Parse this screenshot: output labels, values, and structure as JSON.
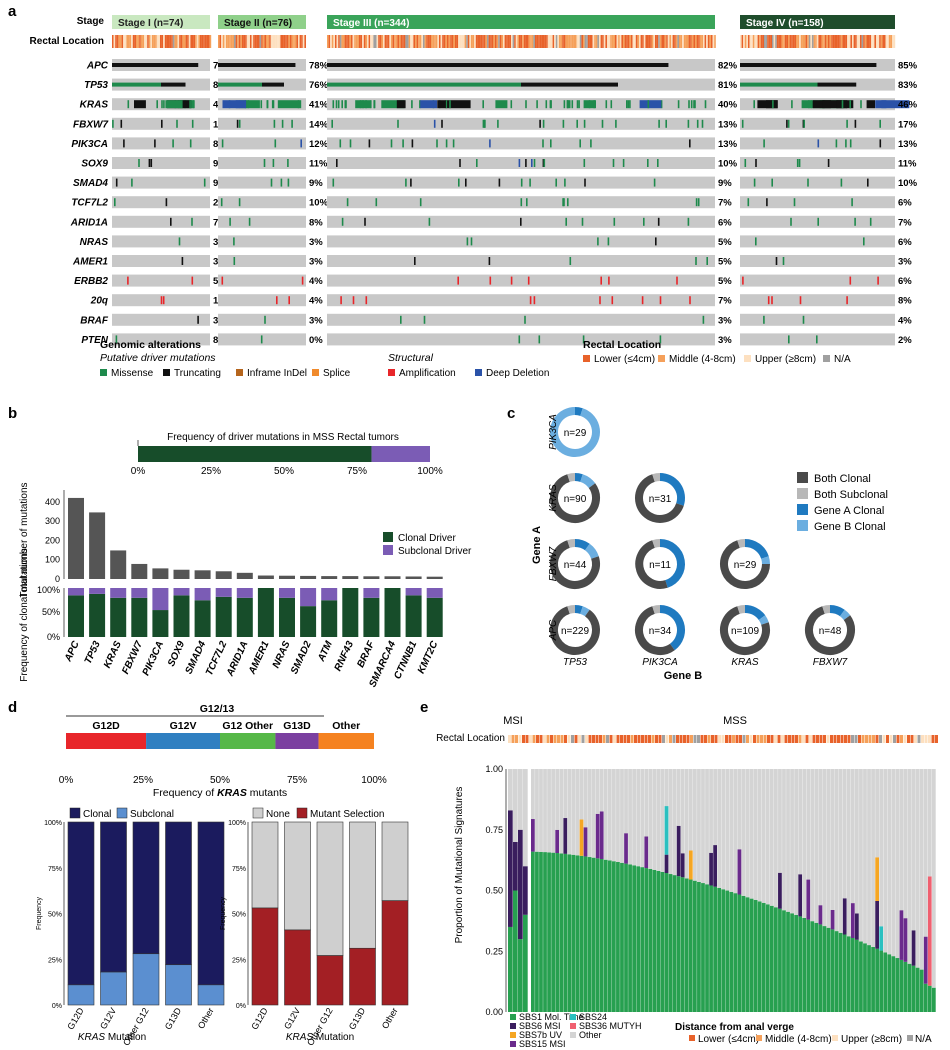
{
  "colors": {
    "missense": "#1e8a4c",
    "truncating": "#111111",
    "inframe": "#b5651d",
    "splice": "#f08a2c",
    "amp": "#e8262a",
    "del": "#2a52a8",
    "bg": "#c8c8c8",
    "loc_lower": "#e8622a",
    "loc_middle": "#f5a05a",
    "loc_upper": "#fde0c0",
    "loc_na": "#a0a0a0",
    "stage1": "#c9e8c0",
    "stage2": "#8fd08a",
    "stage3": "#3aa45a",
    "stage4": "#1f4d2c",
    "clonal": "#174d2a",
    "subclonal": "#7b5cb5",
    "bar": "#555555",
    "both_clonal": "#4a4a4a",
    "both_subclonal": "#b8b8b8",
    "geneA": "#1f7ac0",
    "geneB": "#6baee0",
    "g12d": "#e8262a",
    "g12v": "#2f7fc1",
    "g12other": "#56b848",
    "g13d": "#7b3fa0",
    "other": "#f58220",
    "kclonal": "#1b1b5e",
    "ksubclonal": "#5b8fd0",
    "knone": "#cfcfcf",
    "kselect": "#a31f24",
    "sbs1": "#27a050",
    "sbs6": "#3a1d5e",
    "sbs7b": "#f5a623",
    "sbs15": "#6a2a8c",
    "sbs24": "#2ac0c0",
    "sbs36": "#f06070",
    "sbsother": "#d4d4d4"
  },
  "panel_a": {
    "label": "a",
    "stage_label": "Stage",
    "rectal_label": "Rectal Location",
    "stages": [
      {
        "name": "Stage I (n=74)",
        "n": 74
      },
      {
        "name": "Stage II (n=76)",
        "n": 76
      },
      {
        "name": "Stage III (n=344)",
        "n": 344
      },
      {
        "name": "Stage IV (n=158)",
        "n": 158
      }
    ],
    "genes": [
      {
        "name": "APC",
        "pct": [
          "74%",
          "78%",
          "82%",
          "85%"
        ]
      },
      {
        "name": "TP53",
        "pct": [
          "82%",
          "76%",
          "81%",
          "83%"
        ]
      },
      {
        "name": "KRAS",
        "pct": [
          "42%",
          "41%",
          "40%",
          "46%"
        ]
      },
      {
        "name": "FBXW7",
        "pct": [
          "15%",
          "14%",
          "13%",
          "17%"
        ]
      },
      {
        "name": "PIK3CA",
        "pct": [
          "8%",
          "12%",
          "13%",
          "13%"
        ]
      },
      {
        "name": "SOX9",
        "pct": [
          "9%",
          "11%",
          "10%",
          "11%"
        ]
      },
      {
        "name": "SMAD4",
        "pct": [
          "9%",
          "9%",
          "9%",
          "10%"
        ]
      },
      {
        "name": "TCF7L2",
        "pct": [
          "2%",
          "10%",
          "7%",
          "6%"
        ]
      },
      {
        "name": "ARID1A",
        "pct": [
          "7%",
          "8%",
          "6%",
          "7%"
        ]
      },
      {
        "name": "NRAS",
        "pct": [
          "3%",
          "3%",
          "5%",
          "6%"
        ]
      },
      {
        "name": "AMER1",
        "pct": [
          "3%",
          "3%",
          "5%",
          "3%"
        ]
      },
      {
        "name": "ERBB2",
        "pct": [
          "5%",
          "4%",
          "5%",
          "6%"
        ]
      },
      {
        "name": "20q",
        "pct": [
          "10%",
          "4%",
          "7%",
          "8%"
        ]
      },
      {
        "name": "BRAF",
        "pct": [
          "3%",
          "3%",
          "3%",
          "4%"
        ]
      },
      {
        "name": "PTEN",
        "pct": [
          "8%",
          "0%",
          "3%",
          "2%"
        ]
      }
    ],
    "legend": {
      "genomic_title": "Genomic alterations",
      "driver_title": "Putative driver mutations",
      "items": [
        "Missense",
        "Truncating",
        "Inframe InDel",
        "Splice"
      ],
      "structural_title": "Structural",
      "structural_items": [
        "Amplification",
        "Deep Deletion"
      ],
      "rectal_title": "Rectal Location",
      "rectal_items": [
        "Lower (≤4cm)",
        "Middle (4-8cm)",
        "Upper (≥8cm)",
        "N/A"
      ]
    }
  },
  "panel_b": {
    "label": "b",
    "freq_title": "Frequency of  driver mutations in MSS Rectal tumors",
    "freq_clonal": 0.8,
    "freq_ticks": [
      "0%",
      "25%",
      "50%",
      "75%",
      "100%"
    ],
    "ylabel_top": "Total number of mutations",
    "ylabel_bottom": "Frequency of clonal mutations",
    "y_ticks": [
      "0",
      "100",
      "200",
      "300",
      "400"
    ],
    "y_ticks_b": [
      "0%",
      "50%",
      "100%"
    ],
    "legend": [
      "Clonal Driver",
      "Subclonal Driver"
    ]
  },
  "chart_data": [
    {
      "type": "bar",
      "title": "Total number of mutations",
      "categories": [
        "APC",
        "TP53",
        "KRAS",
        "FBXW7",
        "PIK3CA",
        "SOX9",
        "SMAD4",
        "TCF7L2",
        "ARID1A",
        "AMER1",
        "NRAS",
        "SMAD2",
        "ATM",
        "RNF43",
        "BRAF",
        "SMARCA4",
        "CTNNB1",
        "KMT2C"
      ],
      "values": [
        420,
        345,
        148,
        78,
        55,
        48,
        45,
        40,
        32,
        18,
        17,
        16,
        15,
        15,
        14,
        14,
        13,
        12
      ],
      "ylim": [
        0,
        430
      ]
    },
    {
      "type": "bar",
      "title": "Frequency of clonal mutations",
      "categories": [
        "APC",
        "TP53",
        "KRAS",
        "FBXW7",
        "PIK3CA",
        "SOX9",
        "SMAD4",
        "TCF7L2",
        "ARID1A",
        "AMER1",
        "NRAS",
        "SMAD2",
        "ATM",
        "RNF43",
        "BRAF",
        "SMARCA4",
        "CTNNB1",
        "KMT2C"
      ],
      "series": [
        {
          "name": "Clonal Driver",
          "values": [
            0.85,
            0.88,
            0.8,
            0.8,
            0.55,
            0.85,
            0.75,
            0.82,
            0.8,
            1.0,
            0.8,
            0.63,
            0.75,
            1.0,
            0.8,
            1.0,
            0.85,
            0.8
          ]
        },
        {
          "name": "Subclonal Driver",
          "values": [
            0.15,
            0.12,
            0.2,
            0.2,
            0.45,
            0.15,
            0.25,
            0.18,
            0.2,
            0.0,
            0.2,
            0.37,
            0.25,
            0.0,
            0.2,
            0.0,
            0.15,
            0.2
          ]
        }
      ],
      "ylim": [
        0,
        1
      ]
    },
    {
      "type": "pie",
      "title": "Clonality of co-occurring driver pairs",
      "pairs": [
        {
          "gene_a": "PIK3CA",
          "gene_b": "TP53",
          "n": "n=29",
          "both_clonal": 0,
          "both_subclonal": 0,
          "gene_a_clonal": 0.05,
          "gene_b_clonal": 0.95
        },
        {
          "gene_a": "KRAS",
          "gene_b": "TP53",
          "n": "n=90",
          "both_clonal": 0.8,
          "both_subclonal": 0.05,
          "gene_a_clonal": 0.05,
          "gene_b_clonal": 0.1
        },
        {
          "gene_a": "KRAS",
          "gene_b": "PIK3CA",
          "n": "n=31",
          "both_clonal": 0.65,
          "both_subclonal": 0.05,
          "gene_a_clonal": 0.3,
          "gene_b_clonal": 0
        },
        {
          "gene_a": "FBXW7",
          "gene_b": "TP53",
          "n": "n=44",
          "both_clonal": 0.75,
          "both_subclonal": 0.05,
          "gene_a_clonal": 0.1,
          "gene_b_clonal": 0.1
        },
        {
          "gene_a": "FBXW7",
          "gene_b": "PIK3CA",
          "n": "n=11",
          "both_clonal": 0.5,
          "both_subclonal": 0.05,
          "gene_a_clonal": 0.45,
          "gene_b_clonal": 0
        },
        {
          "gene_a": "FBXW7",
          "gene_b": "KRAS",
          "n": "n=29",
          "both_clonal": 0.7,
          "both_subclonal": 0.05,
          "gene_a_clonal": 0.2,
          "gene_b_clonal": 0.05
        },
        {
          "gene_a": "APC",
          "gene_b": "TP53",
          "n": "n=229",
          "both_clonal": 0.85,
          "both_subclonal": 0.05,
          "gene_a_clonal": 0.05,
          "gene_b_clonal": 0.05
        },
        {
          "gene_a": "APC",
          "gene_b": "PIK3CA",
          "n": "n=34",
          "both_clonal": 0.55,
          "both_subclonal": 0.05,
          "gene_a_clonal": 0.4,
          "gene_b_clonal": 0
        },
        {
          "gene_a": "APC",
          "gene_b": "KRAS",
          "n": "n=109",
          "both_clonal": 0.75,
          "both_subclonal": 0.05,
          "gene_a_clonal": 0.15,
          "gene_b_clonal": 0.05
        },
        {
          "gene_a": "APC",
          "gene_b": "FBXW7",
          "n": "n=48",
          "both_clonal": 0.8,
          "both_subclonal": 0.05,
          "gene_a_clonal": 0.1,
          "gene_b_clonal": 0.05
        }
      ]
    },
    {
      "type": "bar",
      "title": "Frequency of KRAS mutants",
      "categories": [
        "G12D",
        "G12V",
        "G12 Other",
        "G13D",
        "Other"
      ],
      "values": [
        0.26,
        0.24,
        0.18,
        0.14,
        0.18
      ]
    },
    {
      "type": "bar",
      "title": "KRAS clonality",
      "categories": [
        "G12D",
        "G12V",
        "Other G12",
        "G13D",
        "Other"
      ],
      "series": [
        {
          "name": "Clonal",
          "values": [
            0.89,
            0.82,
            0.72,
            0.78,
            0.89
          ]
        },
        {
          "name": "Subclonal",
          "values": [
            0.11,
            0.18,
            0.28,
            0.22,
            0.11
          ]
        }
      ],
      "ylim": [
        0,
        1
      ]
    },
    {
      "type": "bar",
      "title": "KRAS mutant selection",
      "categories": [
        "G12D",
        "G12V",
        "Other G12",
        "G13D",
        "Other"
      ],
      "series": [
        {
          "name": "None",
          "values": [
            0.47,
            0.59,
            0.73,
            0.69,
            0.43
          ]
        },
        {
          "name": "Mutant Selection",
          "values": [
            0.53,
            0.41,
            0.27,
            0.31,
            0.57
          ]
        }
      ],
      "ylim": [
        0,
        1
      ]
    },
    {
      "type": "bar",
      "title": "Proportion of Mutational Signatures",
      "ylabel": "Proportion of Mutational Signatures",
      "ylim": [
        0,
        1
      ],
      "series": [
        {
          "name": "SBS1 Mol. Time",
          "values": "sorted decreasing from ~0.66 to ~0.15 across MSS tumors"
        }
      ]
    }
  ],
  "panel_c": {
    "label": "c",
    "row_labels": [
      "PIK3CA",
      "KRAS",
      "FBXW7",
      "APC"
    ],
    "col_labels": [
      "TP53",
      "PIK3CA",
      "KRAS",
      "FBXW7"
    ],
    "gene_a": "Gene A",
    "gene_b": "Gene B",
    "legend": [
      "Both Clonal",
      "Both Subclonal",
      "Gene A Clonal",
      "Gene B Clonal"
    ]
  },
  "panel_d": {
    "label": "d",
    "group_label": "G12/13",
    "segments": [
      "G12D",
      "G12V",
      "G12 Other",
      "G13D",
      "Other"
    ],
    "ticks": [
      "0%",
      "25%",
      "50%",
      "75%",
      "100%"
    ],
    "freq_prefix": "Frequency of ",
    "freq_gene": "KRAS",
    "freq_suffix": " mutants",
    "y_ticks": [
      "0%",
      "25%",
      "50%",
      "75%",
      "100%"
    ],
    "ylabel": "Frequency",
    "left_legend": [
      "Clonal",
      "Subclonal"
    ],
    "right_legend": [
      "None",
      "Mutant Selection"
    ],
    "x_cats": [
      "G12D",
      "G12V",
      "Other G12",
      "G13D",
      "Other"
    ],
    "xlabel_gene": "KRAS",
    "xlabel_suffix": " Mutation"
  },
  "panel_e": {
    "label": "e",
    "msi": "MSI",
    "mss": "MSS",
    "rectal": "Rectal Location",
    "ylabel": "Proportion of Mutational Signatures",
    "y_ticks": [
      "0.00",
      "0.25",
      "0.50",
      "0.75",
      "1.00"
    ],
    "legend_sigs": [
      "SBS1 Mol. Time",
      "SBS6 MSI",
      "SBS7b UV",
      "SBS15 MSI",
      "SBS24",
      "SBS36 MUTYH",
      "Other"
    ],
    "distance_title": "Distance from anal verge",
    "distance_items": [
      "Lower (≤4cm)",
      "Middle (4-8cm)",
      "Upper (≥8cm)",
      "N/A"
    ]
  }
}
